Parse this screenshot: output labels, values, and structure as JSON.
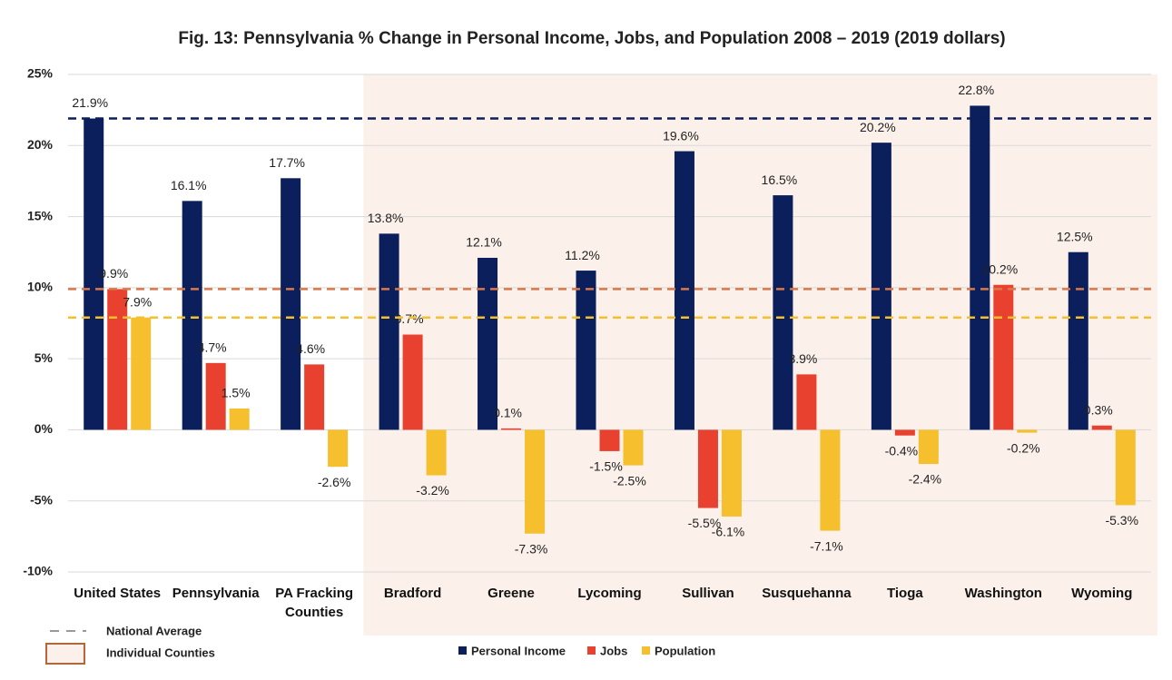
{
  "chart_data": {
    "type": "bar",
    "title": "Fig. 13: Pennsylvania % Change in Personal Income, Jobs, and Population 2008 – 2019 (2019 dollars)",
    "categories": [
      "United States",
      "Pennsylvania",
      "PA Fracking Counties",
      "Bradford",
      "Greene",
      "Lycoming",
      "Sullivan",
      "Susquehanna",
      "Tioga",
      "Washington",
      "Wyoming"
    ],
    "series": [
      {
        "name": "Personal Income",
        "color": "#0b1f5c",
        "values": [
          21.9,
          16.1,
          17.7,
          13.8,
          12.1,
          11.2,
          19.6,
          16.5,
          20.2,
          22.8,
          12.5
        ],
        "value_labels": [
          "21.9%",
          "16.1%",
          "17.7%",
          "13.8%",
          "12.1%",
          "11.2%",
          "19.6%",
          "16.5%",
          "20.2%",
          "22.8%",
          "12.5%"
        ]
      },
      {
        "name": "Jobs",
        "color": "#e8412f",
        "values": [
          9.9,
          4.7,
          4.6,
          6.7,
          0.1,
          -1.5,
          -5.5,
          3.9,
          -0.4,
          10.2,
          0.3
        ],
        "value_labels": [
          "9.9%",
          "4.7%",
          "4.6%",
          "6.7%",
          "0.1%",
          "-1.5%",
          "-5.5%",
          "3.9%",
          "-0.4%",
          "10.2%",
          "0.3%"
        ]
      },
      {
        "name": "Population",
        "color": "#f5bf2e",
        "values": [
          7.9,
          1.5,
          -2.6,
          -3.2,
          -7.3,
          -2.5,
          -6.1,
          -7.1,
          -2.4,
          -0.2,
          -5.3
        ],
        "value_labels": [
          "7.9%",
          "1.5%",
          "-2.6%",
          "-3.2%",
          "-7.3%",
          "-2.5%",
          "-6.1%",
          "-7.1%",
          "-2.4%",
          "-0.2%",
          "-5.3%"
        ]
      }
    ],
    "ylim": [
      -10,
      25
    ],
    "yticks": [
      {
        "value": -10,
        "label": "-10%"
      },
      {
        "value": -5,
        "label": "-5%"
      },
      {
        "value": 0,
        "label": "0%"
      },
      {
        "value": 5,
        "label": "5%"
      },
      {
        "value": 10,
        "label": "10%"
      },
      {
        "value": 15,
        "label": "15%"
      },
      {
        "value": 20,
        "label": "20%"
      },
      {
        "value": 25,
        "label": "25%"
      }
    ],
    "grid": true,
    "legend": "bottom",
    "reference_lines": {
      "label": "National Average",
      "category": "United States",
      "colors": [
        "#0b1f5c",
        "#d9784a",
        "#f5bf2e"
      ]
    },
    "highlight": {
      "label": "Individual Counties",
      "from": "Bradford",
      "to": "Wyoming",
      "color": "#fbf1ea",
      "border": "#b5653a"
    }
  }
}
